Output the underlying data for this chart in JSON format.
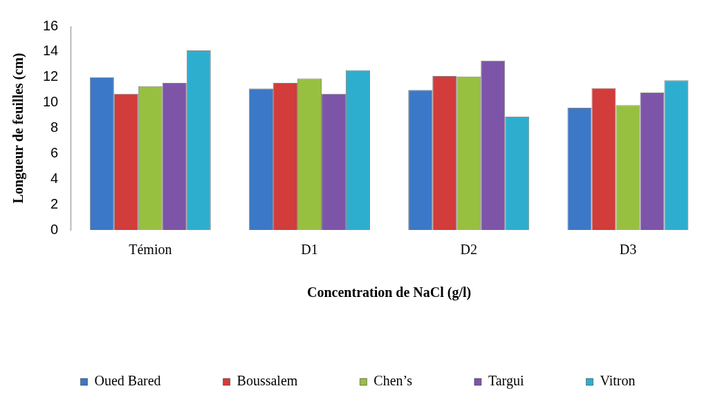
{
  "chart_data": {
    "type": "bar",
    "xlabel": "Concentration de NaCl (g/l)",
    "ylabel": "Longueur de feuilles (cm)",
    "categories": [
      "Témion",
      "D1",
      "D2",
      "D3"
    ],
    "series": [
      {
        "name": "Oued Bared",
        "color": "#3c78c8",
        "values": [
          12.0,
          11.1,
          11.0,
          9.6
        ]
      },
      {
        "name": "Boussalem",
        "color": "#d23c3a",
        "values": [
          10.7,
          11.55,
          12.1,
          11.15
        ]
      },
      {
        "name": "Chen’s",
        "color": "#98c040",
        "values": [
          11.3,
          11.9,
          12.05,
          9.8
        ]
      },
      {
        "name": "Targui",
        "color": "#7d55a8",
        "values": [
          11.55,
          10.7,
          13.3,
          10.8
        ]
      },
      {
        "name": "Vitron",
        "color": "#2eaecf",
        "values": [
          14.1,
          12.55,
          8.9,
          11.75
        ]
      }
    ],
    "ylim": [
      0,
      16
    ],
    "yticks": [
      0,
      2,
      4,
      6,
      8,
      10,
      12,
      14,
      16
    ],
    "grid": false,
    "legend": "bottom"
  }
}
